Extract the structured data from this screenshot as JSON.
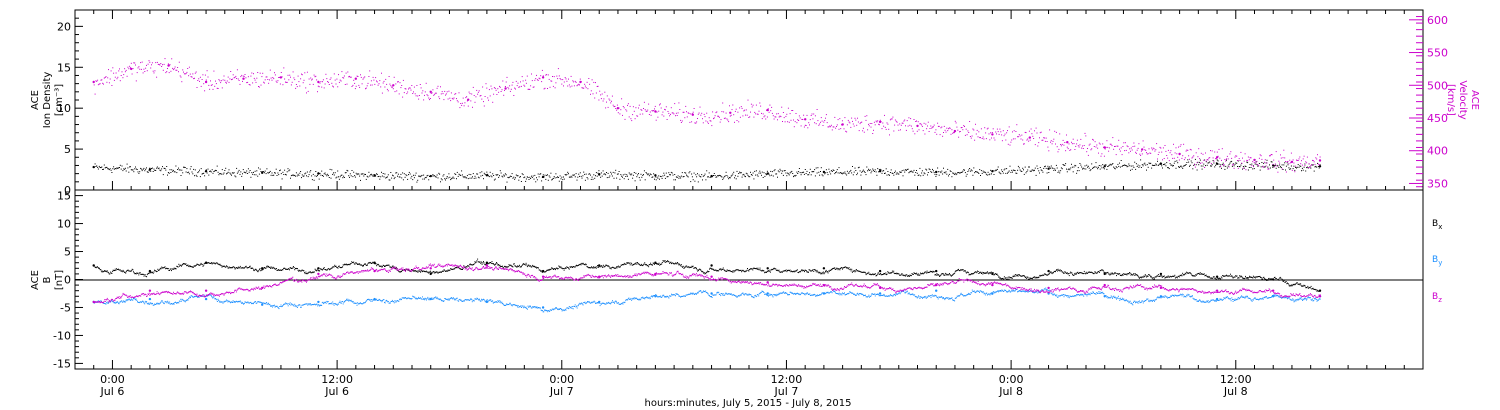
{
  "colors": {
    "black": "#000000",
    "magenta": "#cc00cc",
    "blue": "#1e90ff"
  },
  "chart_data": [
    {
      "type": "scatter",
      "panel": "top",
      "x_unit": "hours since 2015-07-06 00:00 UT",
      "xlim": [
        -2,
        70
      ],
      "left_axis": {
        "label_lines": [
          "ACE",
          "Ion Density",
          "[cm⁻³]"
        ],
        "ylim": [
          0,
          22
        ],
        "ticks": [
          "0",
          "5",
          "10",
          "15",
          "20"
        ]
      },
      "right_axis": {
        "label_lines": [
          "ACE",
          "Velocity",
          "[km/s]"
        ],
        "ylim": [
          340,
          615
        ],
        "ticks": [
          "350",
          "400",
          "450",
          "500",
          "550",
          "600"
        ],
        "color": "magenta"
      },
      "series": [
        {
          "axis": "left",
          "color": "black",
          "x": [
            -1,
            2,
            5,
            8,
            11,
            14,
            17,
            20,
            23,
            26,
            29,
            32,
            35,
            38,
            41,
            44,
            47,
            50,
            53,
            56,
            59,
            62,
            64.5
          ],
          "y": [
            2.8,
            2.5,
            2.3,
            2.1,
            2.0,
            1.8,
            1.7,
            1.8,
            1.6,
            1.9,
            1.8,
            1.7,
            2.0,
            2.2,
            2.3,
            2.2,
            2.3,
            2.6,
            2.9,
            3.2,
            3.2,
            3.0,
            2.9
          ]
        },
        {
          "axis": "right",
          "color": "magenta",
          "x": [
            -1,
            1,
            3,
            5,
            7,
            9,
            11,
            13,
            15,
            17,
            19,
            21,
            23,
            25,
            27,
            29,
            31,
            33,
            35,
            37,
            39,
            41,
            43,
            45,
            47,
            49,
            51,
            53,
            55,
            57,
            59,
            61,
            63,
            64.5
          ],
          "y": [
            505,
            525,
            530,
            505,
            510,
            512,
            505,
            510,
            500,
            490,
            478,
            495,
            512,
            505,
            465,
            460,
            455,
            458,
            462,
            448,
            440,
            444,
            438,
            430,
            425,
            420,
            413,
            405,
            402,
            395,
            390,
            386,
            383,
            385
          ]
        }
      ]
    },
    {
      "type": "scatter",
      "panel": "bottom",
      "x_unit": "hours since 2015-07-06 00:00 UT",
      "xlim": [
        -2,
        70
      ],
      "axis": {
        "label_lines": [
          "ACE",
          "B",
          "[nT]"
        ],
        "ylim": [
          -16,
          16
        ],
        "ticks": [
          "-15",
          "-10",
          "-5",
          "0",
          "5",
          "10",
          "15"
        ]
      },
      "series": [
        {
          "name": "B",
          "subscript": "x",
          "color": "black",
          "x": [
            -1,
            2,
            5,
            8,
            11,
            14,
            17,
            20,
            23,
            26,
            29,
            32,
            35,
            38,
            41,
            44,
            47,
            50,
            53,
            56,
            59,
            62,
            64.5
          ],
          "y": [
            2.5,
            1.5,
            3.0,
            2.0,
            2.0,
            3.0,
            1.0,
            3.0,
            1.5,
            2.5,
            3.0,
            2.5,
            2.0,
            2.0,
            1.5,
            1.5,
            1.0,
            1.5,
            1.0,
            1.0,
            0.5,
            0.0,
            -2.0
          ]
        },
        {
          "name": "B",
          "subscript": "y",
          "color": "blue",
          "x": [
            -1,
            2,
            5,
            8,
            11,
            14,
            17,
            20,
            23,
            26,
            29,
            32,
            35,
            38,
            41,
            44,
            47,
            50,
            53,
            56,
            59,
            62,
            64.5
          ],
          "y": [
            -4.0,
            -3.5,
            -3.5,
            -4.5,
            -4.0,
            -3.5,
            -3.5,
            -4.0,
            -5.0,
            -4.0,
            -3.0,
            -2.5,
            -2.5,
            -2.5,
            -2.5,
            -2.0,
            -2.5,
            -2.5,
            -3.0,
            -3.0,
            -3.5,
            -3.0,
            -3.0
          ]
        },
        {
          "name": "B",
          "subscript": "z",
          "color": "magenta",
          "x": [
            -1,
            2,
            5,
            8,
            11,
            14,
            17,
            20,
            23,
            26,
            29,
            32,
            35,
            38,
            41,
            44,
            47,
            50,
            53,
            56,
            59,
            62,
            64.5
          ],
          "y": [
            -4.0,
            -2.0,
            -2.0,
            -1.5,
            1.0,
            1.5,
            2.0,
            2.5,
            0.5,
            0.5,
            1.0,
            0.5,
            -0.5,
            -1.0,
            -1.5,
            -1.0,
            -1.0,
            -1.5,
            -1.0,
            -1.5,
            -2.0,
            -2.0,
            -3.0
          ]
        }
      ]
    }
  ],
  "x_axis": {
    "major_hours": [
      0,
      12,
      24,
      36,
      48,
      60
    ],
    "time_labels": [
      "0:00",
      "12:00",
      "0:00",
      "12:00",
      "0:00",
      "12:00"
    ],
    "date_labels": [
      "Jul 6",
      "Jul 6",
      "Jul 7",
      "Jul 7",
      "Jul 8",
      "Jul 8"
    ],
    "title": "hours:minutes,  July  5, 2015 - July  8, 2015"
  },
  "legend": {
    "bx_label": "B",
    "bx_sub": "x",
    "by_label": "B",
    "by_sub": "y",
    "bz_label": "B",
    "bz_sub": "z"
  }
}
